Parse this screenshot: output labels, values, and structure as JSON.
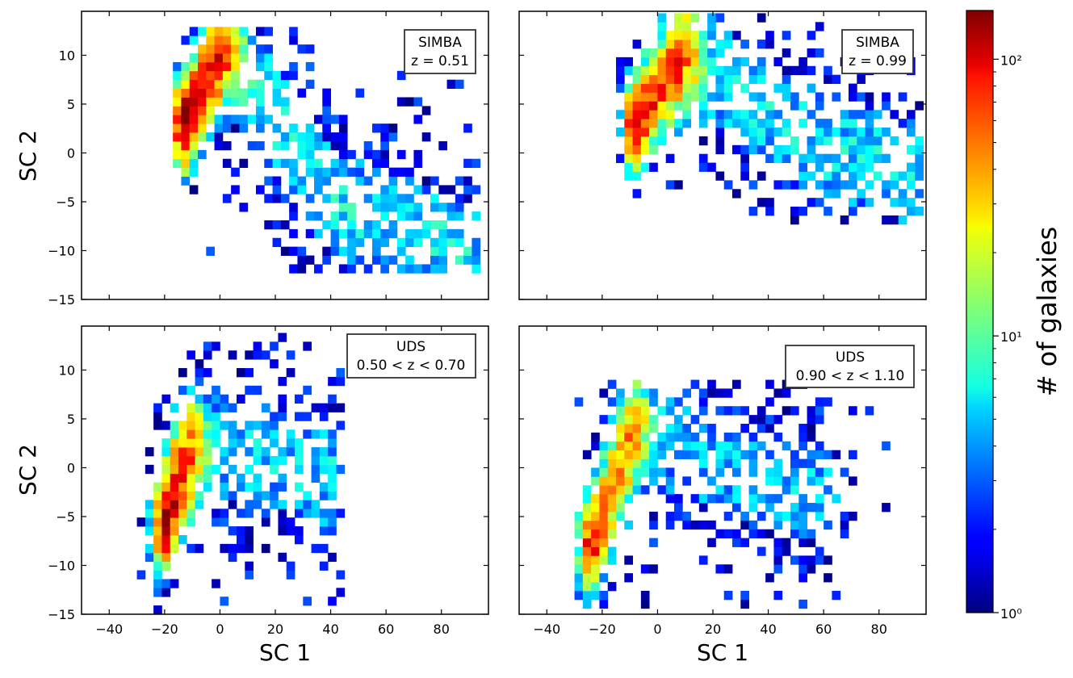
{
  "chart_data": {
    "type": "heatmap",
    "shared_axes": {
      "xlabel": "SC 1",
      "ylabel": "SC 2",
      "xlim": [
        -50,
        97
      ],
      "ylim": [
        -15,
        14.5
      ],
      "xticks": [
        -40,
        -20,
        0,
        20,
        40,
        60,
        80
      ],
      "yticks": [
        -15,
        -10,
        -5,
        0,
        5,
        10
      ],
      "xtick_labels": [
        "−40",
        "−20",
        "0",
        "20",
        "40",
        "60",
        "80"
      ],
      "ytick_labels": [
        "−15",
        "−10",
        "−5",
        "0",
        "5",
        "10"
      ]
    },
    "colorbar": {
      "label": "# of galaxies",
      "scale": "log",
      "range": [
        1,
        150
      ],
      "ticks": [
        1,
        10,
        100
      ],
      "tick_labels": [
        "10⁰",
        "10¹",
        "10²"
      ],
      "colormap": "jet"
    },
    "panels": [
      {
        "id": "simba-051",
        "annotation_line1": "SIMBA",
        "annotation_line2": "z = 0.51",
        "distribution": {
          "shape": "triangle fan",
          "ridge": [
            [
              -13,
              3
            ],
            [
              -4,
              8
            ],
            [
              3,
              11
            ]
          ],
          "peak_counts": 150,
          "tail": [
            [
              40,
              -5
            ],
            [
              90,
              -10.3
            ]
          ],
          "x_span": [
            -17,
            92
          ],
          "y_span": [
            -12.3,
            12.8
          ]
        }
      },
      {
        "id": "simba-099",
        "annotation_line1": "SIMBA",
        "annotation_line2": "z = 0.99",
        "distribution": {
          "shape": "broad fan",
          "ridge": [
            [
              -8,
              3
            ],
            [
              0,
              6.5
            ],
            [
              10,
              10
            ]
          ],
          "peak_counts": 130,
          "tail": [
            [
              50,
              2
            ],
            [
              95,
              -2.5
            ]
          ],
          "x_span": [
            -15,
            95
          ],
          "y_span": [
            -7.3,
            13.8
          ]
        }
      },
      {
        "id": "uds-050-070",
        "annotation_line1": "UDS",
        "annotation_line2": "0.50 < z < 0.70",
        "distribution": {
          "shape": "narrow diagonal band",
          "ridge": [
            [
              -20,
              -6
            ],
            [
              -15,
              -1
            ],
            [
              -10,
              2
            ]
          ],
          "peak_counts": 110,
          "tail": [
            [
              20,
              1
            ],
            [
              40,
              -1
            ]
          ],
          "x_span": [
            -36,
            44
          ],
          "y_span": [
            -15,
            13.8
          ]
        }
      },
      {
        "id": "uds-090-110",
        "annotation_line1": "UDS",
        "annotation_line2": "0.90 < z < 1.10",
        "distribution": {
          "shape": "diagonal wedge",
          "ridge": [
            [
              -24,
              -8
            ],
            [
              -15,
              -1
            ],
            [
              -8,
              4
            ]
          ],
          "peak_counts": 80,
          "tail": [
            [
              45,
              -2
            ],
            [
              60,
              -2.5
            ]
          ],
          "x_span": [
            -30,
            89
          ],
          "y_span": [
            -14.4,
            9
          ]
        }
      }
    ]
  }
}
